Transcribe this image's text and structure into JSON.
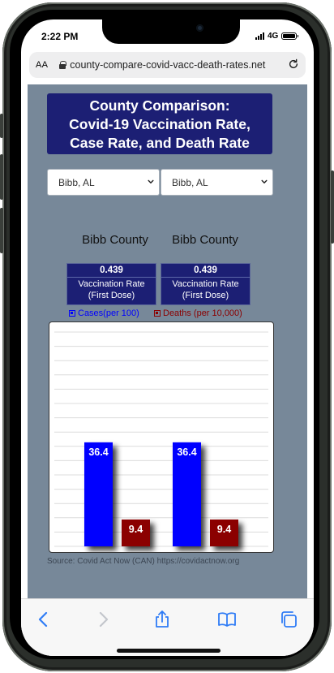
{
  "status_bar": {
    "time": "2:22 PM",
    "network": "4G"
  },
  "browser": {
    "text_size_label": "AA",
    "url": "county-compare-covid-vacc-death-rates.net"
  },
  "page": {
    "title_lines": [
      "County Comparison:",
      "Covid-19 Vaccination Rate,",
      "Case Rate, and Death Rate"
    ],
    "selectors": [
      {
        "value": "Bibb, AL"
      },
      {
        "value": "Bibb, AL"
      }
    ],
    "counties": [
      {
        "name": "Bibb County",
        "vaccination_rate": "0.439",
        "vaccination_label_line1": "Vaccination Rate",
        "vaccination_label_line2": "(First Dose)"
      },
      {
        "name": "Bibb County",
        "vaccination_rate": "0.439",
        "vaccination_label_line1": "Vaccination Rate",
        "vaccination_label_line2": "(First Dose)"
      }
    ],
    "legend": {
      "cases_label": "Cases(per 100)",
      "deaths_label": "Deaths (per 10,000)"
    },
    "source_text": "Source: Covid Act Now (CAN) https://covidactnow.org"
  },
  "chart_data": {
    "type": "bar",
    "categories": [
      "Bibb County",
      "Bibb County"
    ],
    "series": [
      {
        "name": "Cases(per 100)",
        "values": [
          36.4,
          36.4
        ],
        "color": "#0000ff"
      },
      {
        "name": "Deaths (per 10,000)",
        "values": [
          9.4,
          9.4
        ],
        "color": "#8b0000"
      }
    ],
    "value_labels": {
      "cases": [
        "36.4",
        "36.4"
      ],
      "deaths": [
        "9.4",
        "9.4"
      ]
    },
    "ylim": [
      0,
      75
    ],
    "grid": true
  },
  "colors": {
    "panel_bg": "#778899",
    "header_navy": "#1c1f74",
    "cases_blue": "#0000ff",
    "deaths_red": "#8b0000",
    "ios_blue": "#2f7cf6"
  },
  "toolbar_icons": [
    "back-icon",
    "forward-icon",
    "share-icon",
    "bookmarks-icon",
    "tabs-icon"
  ]
}
